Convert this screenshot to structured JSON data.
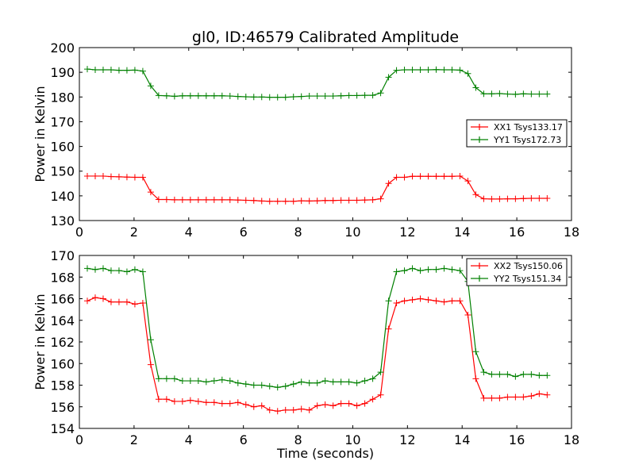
{
  "chart_data": [
    {
      "type": "line",
      "title": "gl0, ID:46579 Calibrated Amplitude",
      "xlabel": "",
      "ylabel": "Power in Kelvin",
      "xlim": [
        0,
        18
      ],
      "ylim": [
        130,
        200
      ],
      "xticks": [
        0,
        2,
        4,
        6,
        8,
        10,
        12,
        14,
        16,
        18
      ],
      "yticks": [
        130,
        140,
        150,
        160,
        170,
        180,
        190,
        200
      ],
      "grid": false,
      "legend_position": "center-right",
      "x": [
        0.29,
        0.58,
        0.87,
        1.16,
        1.45,
        1.74,
        2.03,
        2.32,
        2.61,
        2.9,
        3.19,
        3.48,
        3.77,
        4.06,
        4.35,
        4.64,
        4.93,
        5.22,
        5.51,
        5.8,
        6.09,
        6.38,
        6.67,
        6.96,
        7.25,
        7.54,
        7.83,
        8.12,
        8.41,
        8.7,
        8.99,
        9.28,
        9.57,
        9.86,
        10.15,
        10.44,
        10.73,
        11.02,
        11.31,
        11.6,
        11.89,
        12.18,
        12.47,
        12.76,
        13.05,
        13.34,
        13.63,
        13.92,
        14.21,
        14.5,
        14.79,
        15.08,
        15.37,
        15.66,
        15.95,
        16.24,
        16.53,
        16.82,
        17.11
      ],
      "series": [
        {
          "name": "XX1 Tsys133.17",
          "color": "#ff0000",
          "values": [
            148,
            148,
            148,
            147.8,
            147.7,
            147.6,
            147.5,
            147.5,
            141.5,
            138.5,
            138.5,
            138.4,
            138.4,
            138.4,
            138.4,
            138.4,
            138.4,
            138.4,
            138.4,
            138.3,
            138.2,
            138.1,
            137.9,
            137.8,
            137.8,
            137.8,
            137.8,
            138,
            137.9,
            138,
            138.1,
            138.1,
            138.2,
            138.2,
            138.2,
            138.3,
            138.4,
            138.8,
            145,
            147.5,
            147.5,
            147.9,
            147.9,
            147.9,
            147.9,
            147.9,
            147.9,
            148,
            146,
            140.5,
            138.8,
            138.7,
            138.7,
            138.8,
            138.8,
            138.9,
            139,
            139,
            139
          ]
        },
        {
          "name": "YY1 Tsys172.73",
          "color": "#008000",
          "values": [
            191.3,
            191,
            191,
            191,
            190.8,
            190.8,
            190.9,
            190.5,
            184.5,
            180.6,
            180.5,
            180.3,
            180.5,
            180.5,
            180.5,
            180.5,
            180.5,
            180.5,
            180.4,
            180.2,
            180.1,
            180,
            180,
            179.9,
            179.9,
            179.9,
            180.1,
            180.2,
            180.4,
            180.4,
            180.4,
            180.4,
            180.5,
            180.6,
            180.6,
            180.7,
            180.7,
            181.6,
            188,
            190.8,
            191,
            191,
            191,
            191,
            191.1,
            191,
            191,
            190.9,
            189.5,
            183.8,
            181.3,
            181.3,
            181.4,
            181.2,
            181.1,
            181.3,
            181.2,
            181.2,
            181.2
          ]
        }
      ]
    },
    {
      "type": "line",
      "title": "",
      "xlabel": "Time (seconds)",
      "ylabel": "Power in Kelvin",
      "xlim": [
        0,
        18
      ],
      "ylim": [
        154,
        170
      ],
      "xticks": [
        0,
        2,
        4,
        6,
        8,
        10,
        12,
        14,
        16,
        18
      ],
      "yticks": [
        154,
        156,
        158,
        160,
        162,
        164,
        166,
        168,
        170
      ],
      "grid": false,
      "legend_position": "top-right",
      "x": [
        0.29,
        0.58,
        0.87,
        1.16,
        1.45,
        1.74,
        2.03,
        2.32,
        2.61,
        2.9,
        3.19,
        3.48,
        3.77,
        4.06,
        4.35,
        4.64,
        4.93,
        5.22,
        5.51,
        5.8,
        6.09,
        6.38,
        6.67,
        6.96,
        7.25,
        7.54,
        7.83,
        8.12,
        8.41,
        8.7,
        8.99,
        9.28,
        9.57,
        9.86,
        10.15,
        10.44,
        10.73,
        11.02,
        11.31,
        11.6,
        11.89,
        12.18,
        12.47,
        12.76,
        13.05,
        13.34,
        13.63,
        13.92,
        14.21,
        14.5,
        14.79,
        15.08,
        15.37,
        15.66,
        15.95,
        16.24,
        16.53,
        16.82,
        17.11
      ],
      "series": [
        {
          "name": "XX2 Tsys150.06",
          "color": "#ff0000",
          "values": [
            165.8,
            166.1,
            166,
            165.7,
            165.7,
            165.7,
            165.5,
            165.6,
            159.9,
            156.7,
            156.7,
            156.5,
            156.5,
            156.6,
            156.5,
            156.4,
            156.4,
            156.3,
            156.3,
            156.4,
            156.2,
            156,
            156.1,
            155.7,
            155.6,
            155.7,
            155.7,
            155.8,
            155.7,
            156.1,
            156.2,
            156.1,
            156.3,
            156.3,
            156.1,
            156.3,
            156.7,
            157.1,
            163.2,
            165.6,
            165.8,
            165.9,
            166,
            165.9,
            165.8,
            165.7,
            165.8,
            165.8,
            164.5,
            158.6,
            156.8,
            156.8,
            156.8,
            156.9,
            156.9,
            156.9,
            157,
            157.2,
            157.1
          ]
        },
        {
          "name": "YY2 Tsys151.34",
          "color": "#008000",
          "values": [
            168.8,
            168.7,
            168.8,
            168.6,
            168.6,
            168.5,
            168.7,
            168.5,
            162.2,
            158.6,
            158.6,
            158.6,
            158.4,
            158.4,
            158.4,
            158.3,
            158.4,
            158.5,
            158.4,
            158.2,
            158.1,
            158,
            158,
            157.9,
            157.8,
            157.9,
            158.1,
            158.3,
            158.2,
            158.2,
            158.4,
            158.3,
            158.3,
            158.3,
            158.2,
            158.4,
            158.6,
            159.2,
            165.8,
            168.5,
            168.6,
            168.8,
            168.6,
            168.7,
            168.7,
            168.8,
            168.7,
            168.6,
            167.6,
            161.1,
            159.2,
            159,
            159,
            159,
            158.8,
            159,
            159,
            158.9,
            158.9
          ]
        }
      ]
    }
  ]
}
